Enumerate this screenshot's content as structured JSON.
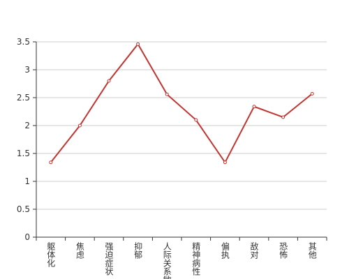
{
  "chart_data": {
    "type": "line",
    "categories": [
      "躯体化",
      "焦虑",
      "强迫症状",
      "抑郁",
      "人际关系敏感",
      "精神病性",
      "偏执",
      "敌对",
      "恐怖",
      "其他"
    ],
    "values": [
      1.34,
      2.0,
      2.8,
      3.46,
      2.56,
      2.1,
      1.34,
      2.34,
      2.15,
      2.57
    ],
    "color": "#c23531",
    "ylim": [
      0,
      3.5
    ],
    "yticks": [
      0,
      0.5,
      1,
      1.5,
      2,
      2.5,
      3,
      3.5
    ],
    "grid": true
  }
}
